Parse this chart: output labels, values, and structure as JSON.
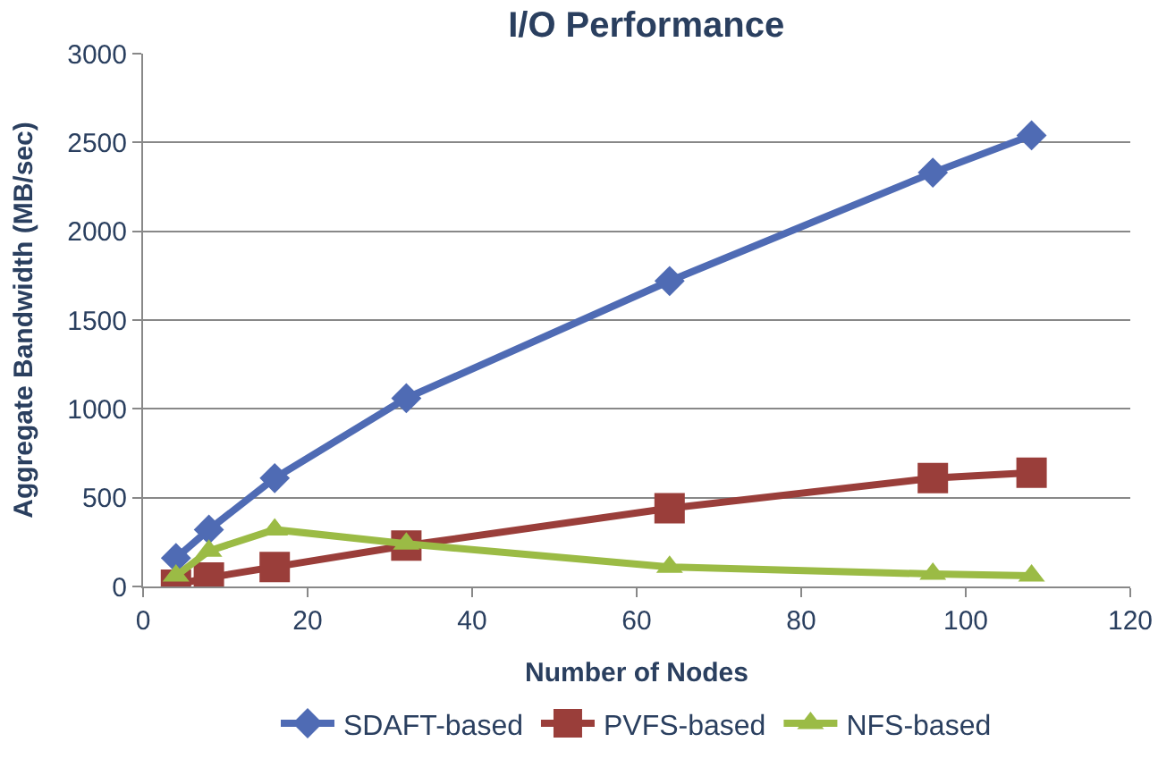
{
  "chart_data": {
    "type": "line",
    "title": "I/O Performance",
    "xlabel": "Number of Nodes",
    "ylabel": "Aggregate Bandwidth (MB/sec)",
    "x": [
      4,
      8,
      16,
      32,
      64,
      96,
      108
    ],
    "series": [
      {
        "name": "SDAFT-based",
        "color": "#4f6bb4",
        "marker": "diamond",
        "values": [
          160,
          320,
          610,
          1060,
          1720,
          2330,
          2540
        ]
      },
      {
        "name": "PVFS-based",
        "color": "#9a3e3a",
        "marker": "square",
        "values": [
          10,
          50,
          110,
          230,
          440,
          610,
          640
        ]
      },
      {
        "name": "NFS-based",
        "color": "#9bbb45",
        "marker": "triangle",
        "values": [
          60,
          200,
          320,
          240,
          110,
          70,
          60
        ]
      }
    ],
    "xlim": [
      0,
      120
    ],
    "xticks": [
      0,
      20,
      40,
      60,
      80,
      100,
      120
    ],
    "ylim": [
      0,
      3000
    ],
    "yticks": [
      0,
      500,
      1000,
      1500,
      2000,
      2500,
      3000
    ],
    "grid": "y",
    "legend": "bottom",
    "line_style": "solid"
  }
}
